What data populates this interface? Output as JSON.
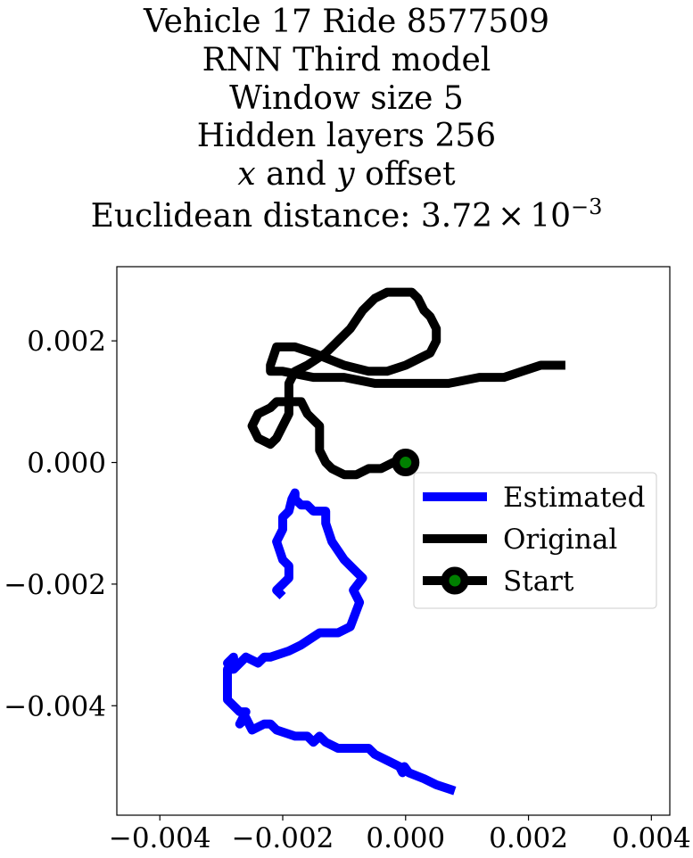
{
  "chart_data": {
    "type": "line",
    "title": {
      "line1": "Vehicle 17 Ride 8577509",
      "line2": "RNN Third model",
      "line3": "Window size 5",
      "line4": "Hidden layers 256",
      "line5_x": "x",
      "line5_mid": " and ",
      "line5_y": "y",
      "line5_end": " offset",
      "line6_prefix": "Euclidean distance: 3.72",
      "line6_times": "×",
      "line6_base": "10",
      "line6_exp": "−3"
    },
    "xlabel": "",
    "ylabel": "",
    "xlim": [
      -0.0047,
      0.0043
    ],
    "ylim": [
      -0.0058,
      0.00322
    ],
    "xticks": [
      -0.004,
      -0.002,
      0.0,
      0.002,
      0.004
    ],
    "xtick_labels": [
      "−0.004",
      "−0.002",
      "0.000",
      "0.002",
      "0.004"
    ],
    "yticks": [
      0.002,
      0.0,
      -0.002,
      -0.004
    ],
    "ytick_labels": [
      "0.002",
      "0.000",
      "−0.002",
      "−0.004"
    ],
    "legend_position": "center-right",
    "series": [
      {
        "name": "Estimated",
        "color": "#0000ff",
        "x": [
          0.0008,
          0.0005,
          0.0003,
          5e-05,
          -2e-05,
          -5e-05,
          -0.0001,
          -0.0003,
          -0.0005,
          -0.0006,
          -0.0008,
          -0.0009,
          -0.0009,
          -0.0009,
          -0.0009,
          -0.001,
          -0.0011,
          -0.0013,
          -0.0014,
          -0.0015,
          -0.0016,
          -0.0016,
          -0.0018,
          -0.0021,
          -0.0022,
          -0.0023,
          -0.0025,
          -0.0026,
          -0.0026,
          -0.0027,
          -0.0026,
          -0.0027,
          -0.0029,
          -0.0029,
          -0.0029,
          -0.0028,
          -0.0028,
          -0.0028,
          -0.0029,
          -0.0029,
          -0.0028,
          -0.0026,
          -0.0024,
          -0.0023,
          -0.0022,
          -0.0019,
          -0.0017,
          -0.0014,
          -0.0012,
          -0.0011,
          -0.0009,
          -0.00075,
          -0.00085,
          -0.0007,
          -0.0008,
          -0.001,
          -0.0012,
          -0.0013,
          -0.0013,
          -0.0014,
          -0.0014,
          -0.0015,
          -0.0015,
          -0.0016,
          -0.0017,
          -0.0018,
          -0.0018,
          -0.00185,
          -0.0019,
          -0.002,
          -0.002,
          -0.0021,
          -0.002,
          -0.0019,
          -0.0019,
          -0.002,
          -0.0021,
          -0.0021,
          -0.0021,
          -0.002
        ],
        "y": [
          -0.0054,
          -0.0053,
          -0.0052,
          -0.0051,
          -0.005,
          -0.0051,
          -0.005,
          -0.0049,
          -0.0048,
          -0.0047,
          -0.0047,
          -0.0047,
          -0.0047,
          -0.0047,
          -0.0047,
          -0.0047,
          -0.0047,
          -0.0046,
          -0.0045,
          -0.0046,
          -0.0045,
          -0.0045,
          -0.0045,
          -0.0044,
          -0.0043,
          -0.0043,
          -0.0044,
          -0.0042,
          -0.0042,
          -0.0043,
          -0.0041,
          -0.0041,
          -0.0039,
          -0.0037,
          -0.0034,
          -0.0034,
          -0.0032,
          -0.0032,
          -0.0033,
          -0.0033,
          -0.0034,
          -0.0032,
          -0.0033,
          -0.0032,
          -0.0032,
          -0.0031,
          -0.003,
          -0.0028,
          -0.0028,
          -0.0028,
          -0.0027,
          -0.0023,
          -0.0021,
          -0.0019,
          -0.0018,
          -0.0016,
          -0.0013,
          -0.001,
          -0.0008,
          -0.0008,
          -0.0008,
          -0.0008,
          -0.0008,
          -0.0007,
          -0.0007,
          -0.0006,
          -0.0005,
          -0.0006,
          -0.0008,
          -0.0009,
          -0.0011,
          -0.0013,
          -0.0016,
          -0.0017,
          -0.0019,
          -0.002,
          -0.0021,
          -0.0021,
          -0.0021,
          -0.0022
        ]
      },
      {
        "name": "Original",
        "color": "#000000",
        "x": [
          0.0026,
          0.0022,
          0.0019,
          0.0016,
          0.0012,
          0.0007,
          0.0,
          -0.0005,
          -0.001,
          -0.0015,
          -0.002,
          -0.0022,
          -0.0022,
          -0.0021,
          -0.0018,
          -0.0015,
          -0.001,
          -0.0006,
          -0.0003,
          0.0,
          0.0002,
          0.0004,
          0.0005,
          0.0005,
          0.0004,
          0.0003,
          0.0002,
          0.0001,
          -0.0001,
          -0.0003,
          -0.0005,
          -0.0007,
          -0.0009,
          -0.0011,
          -0.0013,
          -0.0016,
          -0.0018,
          -0.0019,
          -0.0019,
          -0.0019,
          -0.0019,
          -0.002,
          -0.0021,
          -0.0022,
          -0.0024,
          -0.0025,
          -0.0024,
          -0.0022,
          -0.0021,
          -0.002,
          -0.0018,
          -0.0017,
          -0.0016,
          -0.0014,
          -0.0014,
          -0.0014,
          -0.0013,
          -0.0012,
          -0.001,
          -0.0008,
          -0.0006,
          -0.0004,
          -0.0002,
          0.0
        ],
        "y": [
          0.0016,
          0.0016,
          0.0015,
          0.0014,
          0.0014,
          0.0013,
          0.0013,
          0.0013,
          0.0014,
          0.0014,
          0.0015,
          0.0015,
          0.0016,
          0.0019,
          0.0019,
          0.0018,
          0.0016,
          0.0015,
          0.0015,
          0.0016,
          0.0017,
          0.0018,
          0.002,
          0.0022,
          0.0024,
          0.0025,
          0.0027,
          0.0028,
          0.0028,
          0.0028,
          0.0027,
          0.0025,
          0.0022,
          0.002,
          0.0018,
          0.0016,
          0.0015,
          0.0013,
          0.0012,
          0.001,
          0.0008,
          0.0006,
          0.0004,
          0.0003,
          0.0004,
          0.0006,
          0.0008,
          0.0009,
          0.001,
          0.001,
          0.001,
          0.001,
          0.0008,
          0.0006,
          0.0004,
          0.0002,
          0.0,
          -0.0001,
          -0.0002,
          -0.0002,
          -0.0001,
          -0.0001,
          0.0,
          0.0
        ]
      },
      {
        "name": "Start",
        "line_color": "#000000",
        "marker_face": "#008000",
        "marker_edge": "#000000",
        "x": [
          0.0
        ],
        "y": [
          0.0
        ]
      }
    ]
  }
}
